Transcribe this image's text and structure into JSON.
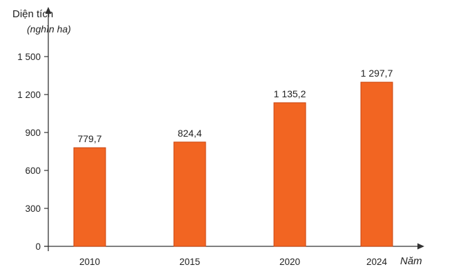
{
  "chart_data": {
    "type": "bar",
    "ylabel": "Diện tích",
    "yunit": "(nghìn ha)",
    "xlabel": "Năm",
    "categories": [
      "2010",
      "2015",
      "2020",
      "2024"
    ],
    "values": [
      779.7,
      824.4,
      1135.2,
      1297.7
    ],
    "value_labels": [
      "779,7",
      "824,4",
      "1 135,2",
      "1 297,7"
    ],
    "yticks": [
      0,
      300,
      600,
      900,
      1200,
      1500
    ],
    "ytick_labels": [
      "0",
      "300",
      "600",
      "900",
      "1 200",
      "1 500"
    ],
    "ylim": [
      0,
      1500
    ],
    "grid": false,
    "legend": "none",
    "bar_color": "#f26522",
    "bar_stroke": "#c9440f",
    "axis_color": "#333333"
  }
}
